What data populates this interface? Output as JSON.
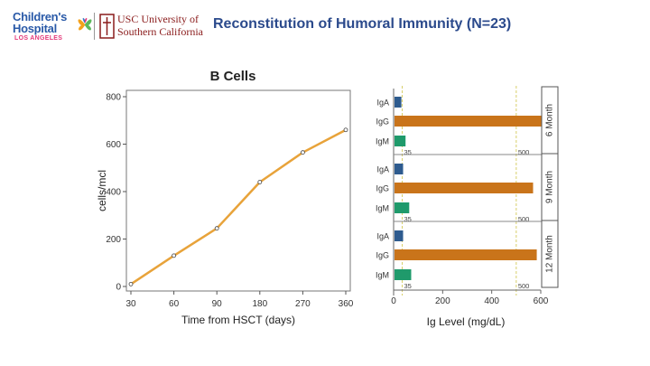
{
  "header": {
    "title": "Reconstitution of Humoral Immunity (N=23)",
    "logo_chla": {
      "line1": "Children's",
      "line2": "Hospital",
      "line3": "LOS ANGELES"
    },
    "logo_usc": {
      "line1": "USC University of",
      "line2": "Southern California"
    }
  },
  "chart_data": [
    {
      "type": "line",
      "title": "B Cells",
      "xlabel": "Time from HSCT (days)",
      "ylabel": "cells/mcl",
      "categories": [
        "30",
        "60",
        "90",
        "180",
        "270",
        "360"
      ],
      "series": [
        {
          "values": [
            10,
            130,
            245,
            440,
            565,
            660
          ]
        }
      ],
      "ylim": [
        0,
        800
      ],
      "yticks": [
        0,
        200,
        400,
        600,
        800
      ],
      "colors": {
        "line": "#e8a33a",
        "marker": "#ffffff",
        "axis": "#555555"
      },
      "grid": false
    },
    {
      "type": "bar",
      "orientation": "horizontal",
      "xlabel": "Ig Level (mg/dL)",
      "xlim": [
        0,
        600
      ],
      "xticks": [
        0,
        200,
        400,
        600
      ],
      "reference_lines": [
        {
          "value": 35,
          "label": "35"
        },
        {
          "value": 500,
          "label": "500"
        }
      ],
      "panels": [
        {
          "label": "6 Month",
          "bars": [
            {
              "category": "IgA",
              "value": 28
            },
            {
              "category": "IgG",
              "value": 600
            },
            {
              "category": "IgM",
              "value": 45
            }
          ]
        },
        {
          "label": "9 Month",
          "bars": [
            {
              "category": "IgA",
              "value": 35
            },
            {
              "category": "IgG",
              "value": 565
            },
            {
              "category": "IgM",
              "value": 60
            }
          ]
        },
        {
          "label": "12 Month",
          "bars": [
            {
              "category": "IgA",
              "value": 35
            },
            {
              "category": "IgG",
              "value": 580
            },
            {
              "category": "IgM",
              "value": 68
            }
          ]
        }
      ],
      "colors": {
        "IgA": "#2e5b8e",
        "IgG": "#c9741a",
        "IgM": "#1f9a6b",
        "reference": "#d8cf6a"
      },
      "grid": false
    }
  ]
}
